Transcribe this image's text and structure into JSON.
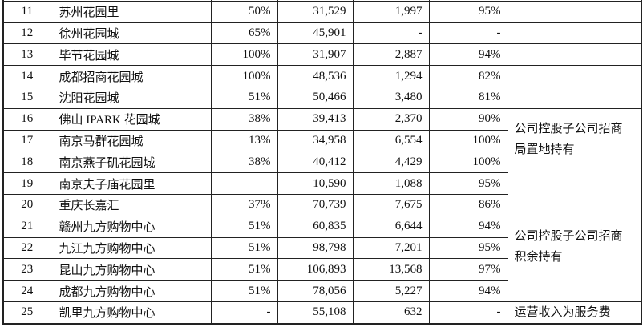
{
  "rows": [
    {
      "no": "11",
      "name": "苏州花园里",
      "share": "50%",
      "area": "31,529",
      "revenue": "1,997",
      "occupancy": "95%"
    },
    {
      "no": "12",
      "name": "徐州花园城",
      "share": "65%",
      "area": "45,901",
      "revenue": "-",
      "occupancy": "-"
    },
    {
      "no": "13",
      "name": "毕节花园城",
      "share": "100%",
      "area": "31,907",
      "revenue": "2,887",
      "occupancy": "94%"
    },
    {
      "no": "14",
      "name": "成都招商花园城",
      "share": "100%",
      "area": "48,536",
      "revenue": "1,294",
      "occupancy": "82%"
    },
    {
      "no": "15",
      "name": "沈阳花园城",
      "share": "51%",
      "area": "50,466",
      "revenue": "3,480",
      "occupancy": "81%"
    },
    {
      "no": "16",
      "name": "佛山 IPARK 花园城",
      "share": "38%",
      "area": "39,413",
      "revenue": "2,370",
      "occupancy": "90%"
    },
    {
      "no": "17",
      "name": "南京马群花园城",
      "share": "13%",
      "area": "34,958",
      "revenue": "6,554",
      "occupancy": "100%"
    },
    {
      "no": "18",
      "name": "南京燕子矶花园城",
      "share": "38%",
      "area": "40,412",
      "revenue": "4,429",
      "occupancy": "100%"
    },
    {
      "no": "19",
      "name": "南京夫子庙花园里",
      "share": "",
      "area": "10,590",
      "revenue": "1,088",
      "occupancy": "95%"
    },
    {
      "no": "20",
      "name": "重庆长嘉汇",
      "share": "37%",
      "area": "70,739",
      "revenue": "7,675",
      "occupancy": "86%"
    },
    {
      "no": "21",
      "name": "赣州九方购物中心",
      "share": "51%",
      "area": "60,835",
      "revenue": "6,644",
      "occupancy": "94%"
    },
    {
      "no": "22",
      "name": "九江九方购物中心",
      "share": "51%",
      "area": "98,798",
      "revenue": "7,201",
      "occupancy": "95%"
    },
    {
      "no": "23",
      "name": "昆山九方购物中心",
      "share": "51%",
      "area": "106,893",
      "revenue": "13,568",
      "occupancy": "97%"
    },
    {
      "no": "24",
      "name": "成都九方购物中心",
      "share": "51%",
      "area": "78,056",
      "revenue": "5,227",
      "occupancy": "94%"
    },
    {
      "no": "25",
      "name": "凯里九方购物中心",
      "share": "-",
      "area": "55,108",
      "revenue": "632",
      "occupancy": "-"
    }
  ],
  "notes": [
    {
      "start": 0,
      "span": 1,
      "text": ""
    },
    {
      "start": 1,
      "span": 1,
      "text": ""
    },
    {
      "start": 2,
      "span": 1,
      "text": ""
    },
    {
      "start": 3,
      "span": 1,
      "text": ""
    },
    {
      "start": 4,
      "span": 1,
      "text": ""
    },
    {
      "start": 5,
      "span": 5,
      "text": "公司控股子公司招商局置地持有"
    },
    {
      "start": 10,
      "span": 4,
      "text": "公司控股子公司招商积余持有"
    },
    {
      "start": 14,
      "span": 1,
      "text": "运营收入为服务费"
    }
  ]
}
